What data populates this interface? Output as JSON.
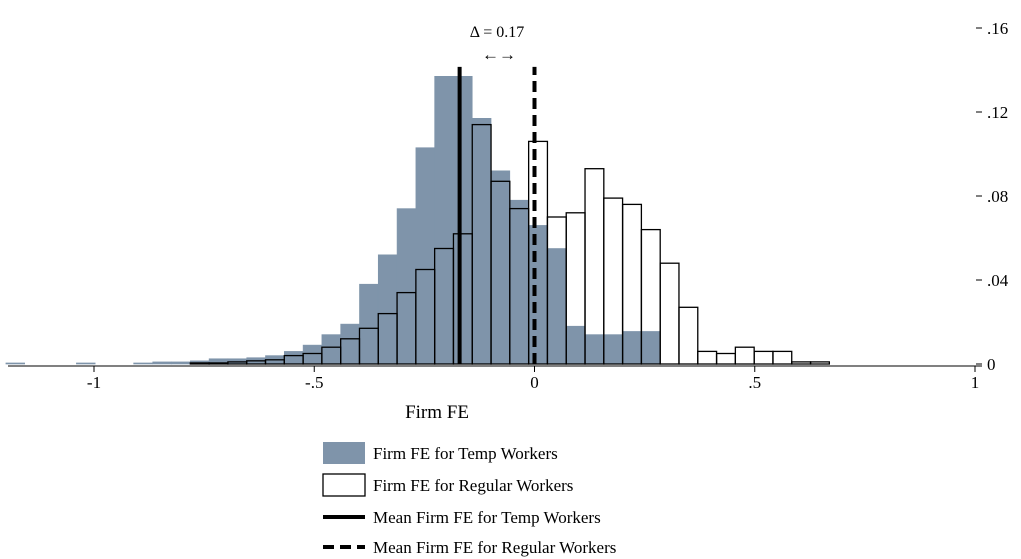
{
  "chart_data": {
    "type": "bar",
    "xlabel": "Firm FE",
    "ylabel": "",
    "xlim": [
      -1.2,
      1.0
    ],
    "ylim": [
      0,
      0.16
    ],
    "xticks": [
      -1,
      -0.5,
      0,
      0.5,
      1
    ],
    "xtick_labels": [
      "-1",
      "-.5",
      "0",
      ".5",
      "1"
    ],
    "yticks": [
      0,
      0.04,
      0.08,
      0.12,
      0.16
    ],
    "ytick_labels": [
      "0",
      ".04",
      ".08",
      ".12",
      ".16"
    ],
    "grid": false,
    "legend_position": "bottom-center",
    "series": [
      {
        "name": "Firm FE for Temp Workers",
        "style": "filled",
        "color": "#7f94aa",
        "bin_width": 0.04266,
        "bins": [
          {
            "x0": -1.2,
            "y": 0.0005
          },
          {
            "x0": -1.04,
            "y": 0.0005
          },
          {
            "x0": -0.91,
            "y": 0.0005
          },
          {
            "x0": -0.8667,
            "y": 0.001
          },
          {
            "x0": -0.824,
            "y": 0.001
          },
          {
            "x0": -0.7813,
            "y": 0.0015
          },
          {
            "x0": -0.7387,
            "y": 0.0025
          },
          {
            "x0": -0.696,
            "y": 0.0025
          },
          {
            "x0": -0.6533,
            "y": 0.003
          },
          {
            "x0": -0.6107,
            "y": 0.004
          },
          {
            "x0": -0.568,
            "y": 0.006
          },
          {
            "x0": -0.5253,
            "y": 0.009
          },
          {
            "x0": -0.4827,
            "y": 0.014
          },
          {
            "x0": -0.44,
            "y": 0.019
          },
          {
            "x0": -0.3973,
            "y": 0.038
          },
          {
            "x0": -0.3547,
            "y": 0.052
          },
          {
            "x0": -0.312,
            "y": 0.074
          },
          {
            "x0": -0.2693,
            "y": 0.103
          },
          {
            "x0": -0.2267,
            "y": 0.137
          },
          {
            "x0": -0.184,
            "y": 0.137
          },
          {
            "x0": -0.1413,
            "y": 0.117
          },
          {
            "x0": -0.0987,
            "y": 0.092
          },
          {
            "x0": -0.056,
            "y": 0.078
          },
          {
            "x0": -0.0133,
            "y": 0.066
          },
          {
            "x0": 0.0293,
            "y": 0.055
          },
          {
            "x0": 0.072,
            "y": 0.018
          },
          {
            "x0": 0.1147,
            "y": 0.014
          },
          {
            "x0": 0.1573,
            "y": 0.014
          },
          {
            "x0": 0.2,
            "y": 0.0155
          },
          {
            "x0": 0.2427,
            "y": 0.0155
          }
        ]
      },
      {
        "name": "Firm FE for Regular Workers",
        "style": "outline",
        "color": "#000000",
        "bin_width": 0.04266,
        "bins": [
          {
            "x0": -0.7813,
            "y": 0.0005
          },
          {
            "x0": -0.7387,
            "y": 0.0005
          },
          {
            "x0": -0.696,
            "y": 0.001
          },
          {
            "x0": -0.6533,
            "y": 0.0015
          },
          {
            "x0": -0.6107,
            "y": 0.002
          },
          {
            "x0": -0.568,
            "y": 0.004
          },
          {
            "x0": -0.5253,
            "y": 0.005
          },
          {
            "x0": -0.4827,
            "y": 0.008
          },
          {
            "x0": -0.44,
            "y": 0.012
          },
          {
            "x0": -0.3973,
            "y": 0.017
          },
          {
            "x0": -0.3547,
            "y": 0.024
          },
          {
            "x0": -0.312,
            "y": 0.034
          },
          {
            "x0": -0.2693,
            "y": 0.045
          },
          {
            "x0": -0.2267,
            "y": 0.055
          },
          {
            "x0": -0.184,
            "y": 0.062
          },
          {
            "x0": -0.1413,
            "y": 0.114
          },
          {
            "x0": -0.0987,
            "y": 0.087
          },
          {
            "x0": -0.056,
            "y": 0.074
          },
          {
            "x0": -0.0133,
            "y": 0.106
          },
          {
            "x0": 0.0293,
            "y": 0.07
          },
          {
            "x0": 0.072,
            "y": 0.072
          },
          {
            "x0": 0.1147,
            "y": 0.093
          },
          {
            "x0": 0.1573,
            "y": 0.079
          },
          {
            "x0": 0.2,
            "y": 0.076
          },
          {
            "x0": 0.2427,
            "y": 0.064
          },
          {
            "x0": 0.2853,
            "y": 0.048
          },
          {
            "x0": 0.328,
            "y": 0.027
          },
          {
            "x0": 0.3707,
            "y": 0.006
          },
          {
            "x0": 0.4133,
            "y": 0.005
          },
          {
            "x0": 0.456,
            "y": 0.008
          },
          {
            "x0": 0.4987,
            "y": 0.006
          },
          {
            "x0": 0.5413,
            "y": 0.006
          },
          {
            "x0": 0.584,
            "y": 0.001
          },
          {
            "x0": 0.6267,
            "y": 0.001
          }
        ]
      }
    ],
    "mean_lines": [
      {
        "name": "Mean Firm FE for Temp Workers",
        "x": -0.17,
        "style": "solid",
        "y_top": 0.1415
      },
      {
        "name": "Mean Firm FE for Regular Workers",
        "x": 0.0,
        "style": "dashed",
        "y_top": 0.1415
      }
    ],
    "annotation": {
      "text": "Δ = 0.17",
      "arrow": "←→",
      "x_from": -0.17,
      "x_to": 0.0
    }
  }
}
